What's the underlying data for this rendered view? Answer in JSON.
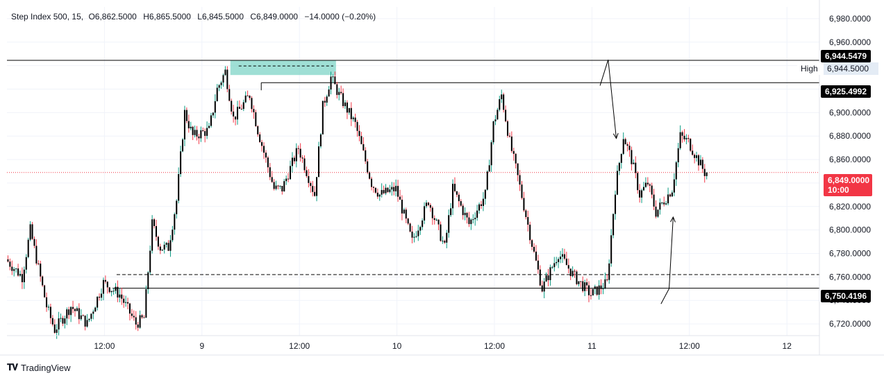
{
  "legend": {
    "symbol": "Step Index 500, 15,",
    "open": "O6,862.5000",
    "high": "H6,865.5000",
    "low": "L6,845.5000",
    "close": "C6,849.0000",
    "change": "−14.0000 (−0.20%)"
  },
  "price_tags": {
    "level_top": "6,944.5479",
    "high_label": "High",
    "high_value": "6,944.5000",
    "level_second": "6,925.4992",
    "current_price": "6,849.0000",
    "countdown": "10:00",
    "level_bottom": "6,750.4196"
  },
  "brand": {
    "name": "TradingView",
    "logo": "tradingview-logo-icon"
  },
  "colors": {
    "up": "#089981",
    "down": "#f23645",
    "body": "#000000",
    "zone": "#7fd4c7",
    "current": "#f23645",
    "grid": "#f0f3fa"
  },
  "chart_data": {
    "type": "candlestick",
    "title": "Step Index 500, 15",
    "xlabel": "",
    "ylabel": "",
    "ylim": [
      6710,
      6990
    ],
    "y_ticks": [
      "6,720.0000",
      "6,740.0000",
      "6,760.0000",
      "6,780.0000",
      "6,800.0000",
      "6,820.0000",
      "6,840.0000",
      "6,860.0000",
      "6,880.0000",
      "6,900.0000",
      "6,920.0000",
      "6,940.0000",
      "6,960.0000",
      "6,980.0000"
    ],
    "y_tick_values": [
      6720,
      6740,
      6760,
      6780,
      6800,
      6820,
      6840,
      6860,
      6880,
      6900,
      6920,
      6940,
      6960,
      6980
    ],
    "x_ticks": [
      "12:00",
      "9",
      "12:00",
      "10",
      "12:00",
      "11",
      "12:00",
      "12"
    ],
    "x_tick_hours": [
      12,
      24,
      36,
      48,
      60,
      72,
      84,
      96
    ],
    "x_range_hours": [
      0,
      100
    ],
    "grid": true,
    "horizontal_levels": [
      {
        "price": 6944.5479,
        "style": "solid"
      },
      {
        "price": 6925.4992,
        "style": "solid"
      },
      {
        "price": 6762.0,
        "style": "dashed"
      },
      {
        "price": 6750.4196,
        "style": "solid"
      }
    ],
    "zone": {
      "from_hour": 27.5,
      "to_hour": 40.5,
      "low": 6932.0,
      "high": 6944.5
    },
    "current_price": 6849.0,
    "path_hours": [
      0,
      2,
      3,
      5,
      6,
      8,
      10,
      12,
      14,
      16,
      17,
      18,
      19,
      20,
      21,
      22,
      23,
      25,
      26,
      27,
      28,
      30,
      31,
      33,
      34,
      36,
      38,
      39,
      40,
      41,
      43,
      45,
      46,
      48,
      50,
      52,
      54,
      55,
      57,
      59,
      60,
      61,
      62,
      63,
      65,
      66,
      68,
      70,
      72,
      74,
      75,
      76,
      77,
      78,
      79,
      80,
      82,
      83,
      84,
      85,
      86
    ],
    "path_prices": [
      6775,
      6760,
      6800,
      6735,
      6715,
      6735,
      6720,
      6755,
      6745,
      6720,
      6725,
      6805,
      6785,
      6785,
      6825,
      6900,
      6880,
      6885,
      6920,
      6935,
      6895,
      6915,
      6885,
      6835,
      6835,
      6870,
      6830,
      6905,
      6930,
      6915,
      6890,
      6840,
      6830,
      6835,
      6790,
      6825,
      6785,
      6835,
      6805,
      6830,
      6890,
      6915,
      6875,
      6845,
      6780,
      6750,
      6780,
      6760,
      6745,
      6755,
      6835,
      6880,
      6860,
      6830,
      6840,
      6815,
      6835,
      6880,
      6875,
      6862,
      6849
    ],
    "arrows": [
      {
        "from_hour": 73,
        "from_price": 6923,
        "to_hour": 74,
        "to_price": 6945,
        "then_hour": 75,
        "then_price": 6878
      },
      {
        "from_hour": 80.5,
        "from_price": 6737,
        "to_hour": 81.5,
        "to_price": 6750,
        "then_hour": 82,
        "then_price": 6811
      }
    ]
  }
}
